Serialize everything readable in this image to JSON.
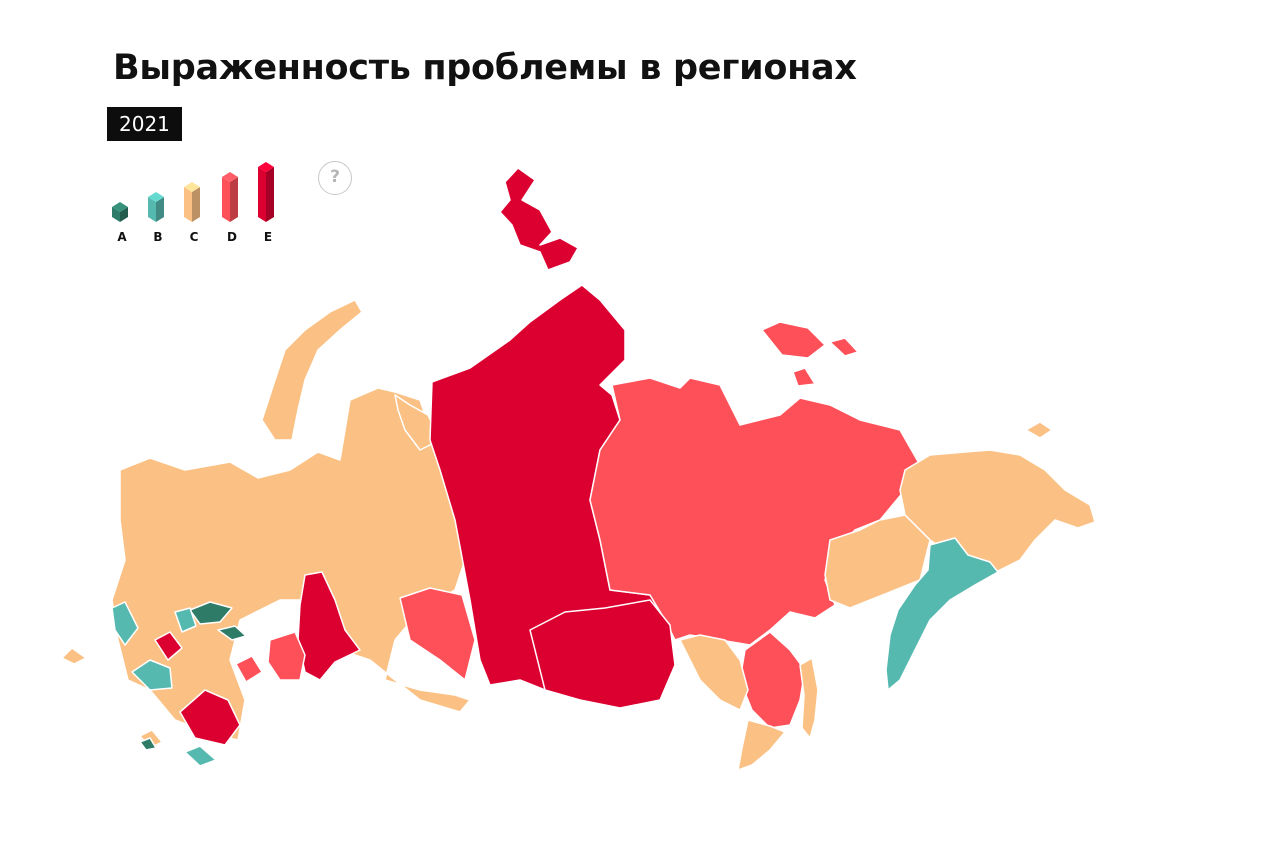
{
  "title": "Выраженность проблемы в регионах",
  "year": "2021",
  "help_label": "?",
  "colors": {
    "A": "#2e7c68",
    "B": "#56b9b0",
    "C": "#fbc184",
    "D": "#fd5059",
    "E": "#dc0031",
    "border": "#b9977f"
  },
  "legend": [
    {
      "label": "A",
      "level": 1,
      "color": "#2e7c68"
    },
    {
      "label": "B",
      "level": 2,
      "color": "#56b9b0"
    },
    {
      "label": "C",
      "level": 3,
      "color": "#fbc184"
    },
    {
      "label": "D",
      "level": 4,
      "color": "#fd5059"
    },
    {
      "label": "E",
      "level": 5,
      "color": "#dc0031"
    }
  ],
  "regions": [
    {
      "id": "western-russia",
      "category": "C"
    },
    {
      "id": "kola-karelia",
      "category": "C"
    },
    {
      "id": "arkhangelsk-komi",
      "category": "C"
    },
    {
      "id": "orenburg-bashkiria",
      "category": "E"
    },
    {
      "id": "krasnoyarsk-taimyr",
      "category": "E"
    },
    {
      "id": "irkutsk-tuva",
      "category": "E"
    },
    {
      "id": "yakutia",
      "category": "D"
    },
    {
      "id": "chukotka",
      "category": "C"
    },
    {
      "id": "khabarovsk",
      "category": "C"
    },
    {
      "id": "kamchatka",
      "category": "B"
    }
  ]
}
